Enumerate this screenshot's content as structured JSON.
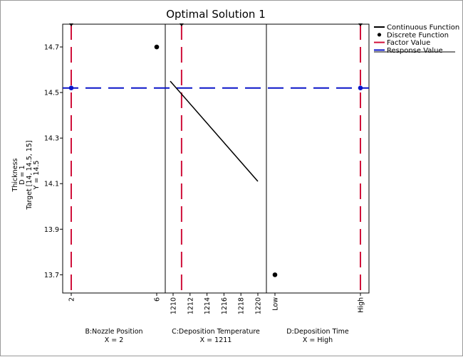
{
  "chart_data": {
    "type": "line",
    "title": "Optimal Solution 1",
    "response": {
      "label_lines": [
        "Thickness",
        "D = 1",
        "Target [14, 14.5, 15]",
        "Y = 14.5"
      ],
      "yticks": [
        "14.7",
        "14.5",
        "14.3",
        "14.1",
        "13.9",
        "13.7"
      ],
      "ylim": [
        13.62,
        14.8
      ],
      "value": 14.52
    },
    "legend": [
      "Continuous Function",
      "Discrete Function",
      "Factor Value",
      "Response Value"
    ],
    "colors": {
      "factor": "#d0103a",
      "response": "#0a14c8",
      "function": "#000000"
    },
    "panels": [
      {
        "name": "B:Nozzle Position",
        "setting": "X = 2",
        "kind": "discrete",
        "ticks": [
          "2",
          "6"
        ],
        "points": [
          {
            "x": "2",
            "y": 14.52
          },
          {
            "x": "6",
            "y": 14.7
          }
        ],
        "factor": "2"
      },
      {
        "name": "C:Deposition Temperature",
        "setting": "X = 1211",
        "kind": "continuous",
        "ticks": [
          "1210",
          "1212",
          "1214",
          "1216",
          "1218",
          "1220"
        ],
        "xlim": [
          1210,
          1220
        ],
        "line": {
          "x": [
            1210,
            1220
          ],
          "y": [
            14.55,
            14.11
          ]
        },
        "factor": 1211
      },
      {
        "name": "D:Deposition Time",
        "setting": "X = High",
        "kind": "discrete",
        "ticks": [
          "Low",
          "High"
        ],
        "points": [
          {
            "x": "Low",
            "y": 13.7
          },
          {
            "x": "High",
            "y": 14.52
          }
        ],
        "factor": "High"
      }
    ]
  }
}
